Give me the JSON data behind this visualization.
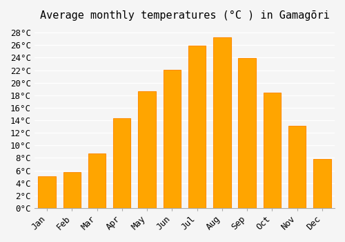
{
  "title": "Average monthly temperatures (°C ) in Gamagōri",
  "months": [
    "Jan",
    "Feb",
    "Mar",
    "Apr",
    "May",
    "Jun",
    "Jul",
    "Aug",
    "Sep",
    "Oct",
    "Nov",
    "Dec"
  ],
  "temperatures": [
    5.1,
    5.7,
    8.7,
    14.3,
    18.6,
    22.1,
    25.9,
    27.2,
    23.9,
    18.4,
    13.1,
    7.8
  ],
  "bar_color": "#FFA500",
  "bar_edge_color": "#FF8C00",
  "ylim": [
    0,
    29
  ],
  "yticks": [
    0,
    2,
    4,
    6,
    8,
    10,
    12,
    14,
    16,
    18,
    20,
    22,
    24,
    26,
    28
  ],
  "background_color": "#f5f5f5",
  "grid_color": "#ffffff",
  "title_fontsize": 11,
  "tick_fontsize": 9,
  "font_family": "monospace"
}
